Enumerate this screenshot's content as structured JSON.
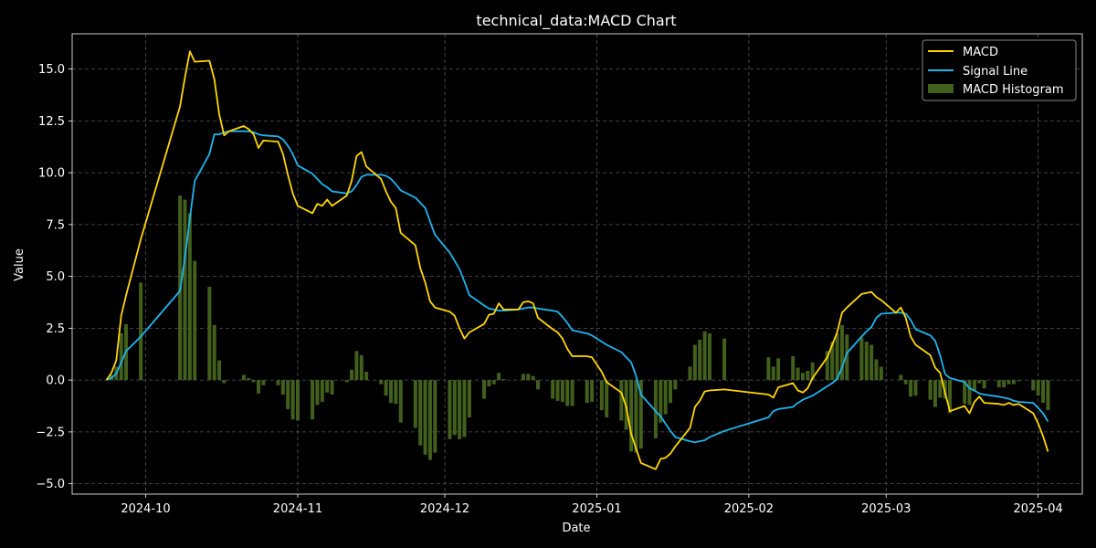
{
  "colors": {
    "background": "#000000",
    "axes": "#ffffff",
    "grid": "#555555",
    "macd": "#ffd700",
    "signal": "#1fb5f0",
    "histogram": "#425f1c"
  },
  "chart_data": {
    "type": "line",
    "title": "technical_data:MACD Chart",
    "xlabel": "Date",
    "ylabel": "Value",
    "xlim": [
      "2024-09-16",
      "2025-04-10"
    ],
    "ylim": [
      -5.5,
      16.7
    ],
    "grid": true,
    "legend_position": "top-right",
    "x_ticks": [
      "2024-10-01",
      "2024-11-01",
      "2024-12-01",
      "2025-01-01",
      "2025-02-01",
      "2025-03-01",
      "2025-04-01"
    ],
    "x_tick_labels": [
      "2024-10",
      "2024-11",
      "2024-12",
      "2025-01",
      "2025-02",
      "2025-03",
      "2025-04"
    ],
    "y_ticks": [
      -5.0,
      -2.5,
      0.0,
      2.5,
      5.0,
      7.5,
      10.0,
      12.5,
      15.0
    ],
    "y_tick_labels": [
      "−5.0",
      "−2.5",
      "0.0",
      "2.5",
      "5.0",
      "7.5",
      "10.0",
      "12.5",
      "15.0"
    ],
    "dates": [
      "2024-09-23",
      "2024-09-24",
      "2024-09-25",
      "2024-09-26",
      "2024-09-27",
      "2024-09-30",
      "2024-10-08",
      "2024-10-09",
      "2024-10-10",
      "2024-10-11",
      "2024-10-14",
      "2024-10-15",
      "2024-10-16",
      "2024-10-17",
      "2024-10-18",
      "2024-10-21",
      "2024-10-22",
      "2024-10-23",
      "2024-10-24",
      "2024-10-25",
      "2024-10-28",
      "2024-10-29",
      "2024-10-30",
      "2024-10-31",
      "2024-11-01",
      "2024-11-04",
      "2024-11-05",
      "2024-11-06",
      "2024-11-07",
      "2024-11-08",
      "2024-11-11",
      "2024-11-12",
      "2024-11-13",
      "2024-11-14",
      "2024-11-15",
      "2024-11-18",
      "2024-11-19",
      "2024-11-20",
      "2024-11-21",
      "2024-11-22",
      "2024-11-25",
      "2024-11-26",
      "2024-11-27",
      "2024-11-28",
      "2024-11-29",
      "2024-12-02",
      "2024-12-03",
      "2024-12-04",
      "2024-12-05",
      "2024-12-06",
      "2024-12-09",
      "2024-12-10",
      "2024-12-11",
      "2024-12-12",
      "2024-12-13",
      "2024-12-16",
      "2024-12-17",
      "2024-12-18",
      "2024-12-19",
      "2024-12-20",
      "2024-12-23",
      "2024-12-24",
      "2024-12-25",
      "2024-12-26",
      "2024-12-27",
      "2024-12-30",
      "2024-12-31",
      "2025-01-02",
      "2025-01-03",
      "2025-01-06",
      "2025-01-07",
      "2025-01-08",
      "2025-01-09",
      "2025-01-10",
      "2025-01-13",
      "2025-01-14",
      "2025-01-15",
      "2025-01-16",
      "2025-01-17",
      "2025-01-20",
      "2025-01-21",
      "2025-01-22",
      "2025-01-23",
      "2025-01-24",
      "2025-01-27",
      "2025-02-05",
      "2025-02-06",
      "2025-02-07",
      "2025-02-10",
      "2025-02-11",
      "2025-02-12",
      "2025-02-13",
      "2025-02-14",
      "2025-02-17",
      "2025-02-18",
      "2025-02-19",
      "2025-02-20",
      "2025-02-21",
      "2025-02-24",
      "2025-02-25",
      "2025-02-26",
      "2025-02-27",
      "2025-02-28",
      "2025-03-03",
      "2025-03-04",
      "2025-03-05",
      "2025-03-06",
      "2025-03-07",
      "2025-03-10",
      "2025-03-11",
      "2025-03-12",
      "2025-03-13",
      "2025-03-14",
      "2025-03-17",
      "2025-03-18",
      "2025-03-19",
      "2025-03-20",
      "2025-03-21",
      "2025-03-24",
      "2025-03-25",
      "2025-03-26",
      "2025-03-27",
      "2025-03-28",
      "2025-03-31",
      "2025-04-01",
      "2025-04-02",
      "2025-04-03"
    ],
    "series": [
      {
        "name": "MACD",
        "color": "#ffd700",
        "values": [
          0.0,
          0.35,
          0.95,
          3.1,
          4.1,
          6.8,
          13.2,
          14.6,
          15.85,
          15.35,
          15.4,
          14.5,
          12.8,
          11.8,
          12.0,
          12.25,
          12.1,
          11.85,
          11.2,
          11.55,
          11.5,
          10.9,
          9.9,
          9.0,
          8.4,
          8.05,
          8.5,
          8.4,
          8.7,
          8.4,
          8.9,
          9.6,
          10.8,
          11.0,
          10.3,
          9.7,
          9.1,
          8.6,
          8.3,
          7.1,
          6.5,
          5.4,
          4.7,
          3.8,
          3.5,
          3.3,
          3.1,
          2.5,
          2.0,
          2.3,
          2.7,
          3.15,
          3.2,
          3.7,
          3.4,
          3.4,
          3.75,
          3.8,
          3.7,
          3.0,
          2.45,
          2.3,
          2.0,
          1.5,
          1.15,
          1.15,
          1.1,
          0.4,
          -0.1,
          -0.6,
          -1.3,
          -2.6,
          -3.3,
          -4.0,
          -4.3,
          -3.8,
          -3.75,
          -3.55,
          -3.2,
          -2.3,
          -1.3,
          -1.0,
          -0.55,
          -0.5,
          -0.45,
          -0.7,
          -0.85,
          -0.35,
          -0.15,
          -0.5,
          -0.6,
          -0.4,
          0.1,
          1.1,
          1.7,
          2.3,
          3.25,
          3.5,
          4.15,
          4.2,
          4.25,
          4.0,
          3.85,
          3.25,
          3.5,
          3.0,
          2.1,
          1.7,
          1.2,
          0.6,
          0.35,
          -0.6,
          -1.5,
          -1.25,
          -1.6,
          -1.05,
          -0.8,
          -1.1,
          -1.15,
          -1.2,
          -1.1,
          -1.2,
          -1.15,
          -1.6,
          -2.1,
          -2.7,
          -3.45
        ]
      },
      {
        "name": "Signal Line",
        "color": "#1fb5f0",
        "values": [
          0.0,
          0.1,
          0.3,
          0.85,
          1.4,
          2.1,
          4.3,
          5.9,
          7.8,
          9.6,
          10.9,
          11.85,
          11.85,
          11.95,
          12.0,
          12.0,
          12.0,
          11.95,
          11.85,
          11.8,
          11.75,
          11.6,
          11.3,
          10.9,
          10.35,
          9.95,
          9.7,
          9.45,
          9.3,
          9.1,
          9.0,
          9.1,
          9.4,
          9.8,
          9.9,
          9.9,
          9.85,
          9.7,
          9.45,
          9.15,
          8.8,
          8.55,
          8.3,
          7.65,
          7.0,
          6.15,
          5.75,
          5.35,
          4.75,
          4.1,
          3.6,
          3.45,
          3.4,
          3.35,
          3.35,
          3.4,
          3.45,
          3.5,
          3.5,
          3.45,
          3.35,
          3.3,
          3.05,
          2.75,
          2.4,
          2.25,
          2.15,
          1.85,
          1.7,
          1.35,
          1.1,
          0.85,
          0.2,
          -0.7,
          -1.5,
          -1.75,
          -2.1,
          -2.45,
          -2.75,
          -2.95,
          -3.0,
          -2.95,
          -2.9,
          -2.75,
          -2.45,
          -1.8,
          -1.5,
          -1.4,
          -1.3,
          -1.1,
          -0.95,
          -0.85,
          -0.75,
          -0.3,
          -0.15,
          0.05,
          0.6,
          1.3,
          2.1,
          2.35,
          2.55,
          3.0,
          3.2,
          3.25,
          3.25,
          3.2,
          2.9,
          2.45,
          2.15,
          1.9,
          1.2,
          0.3,
          0.1,
          -0.1,
          -0.4,
          -0.5,
          -0.65,
          -0.7,
          -0.8,
          -0.85,
          -0.9,
          -1.0,
          -1.05,
          -1.1,
          -1.35,
          -1.6,
          -2.0
        ]
      },
      {
        "name": "MACD Histogram",
        "color": "#425f1c",
        "type": "bar",
        "values": [
          0.0,
          0.25,
          0.65,
          2.25,
          2.7,
          4.7,
          8.9,
          8.7,
          8.05,
          5.75,
          4.5,
          2.65,
          0.95,
          -0.15,
          0.0,
          0.25,
          0.1,
          -0.1,
          -0.65,
          -0.25,
          -0.25,
          -0.7,
          -1.4,
          -1.9,
          -1.95,
          -1.9,
          -1.2,
          -1.05,
          -0.6,
          -0.7,
          -0.1,
          0.5,
          1.4,
          1.2,
          0.4,
          -0.2,
          -0.75,
          -1.1,
          -1.15,
          -2.05,
          -2.3,
          -3.15,
          -3.6,
          -3.85,
          -3.5,
          -2.85,
          -2.65,
          -2.85,
          -2.75,
          -1.8,
          -0.9,
          -0.3,
          -0.2,
          0.35,
          0.05,
          0.0,
          0.3,
          0.3,
          0.2,
          -0.45,
          -0.9,
          -1.0,
          -1.05,
          -1.25,
          -1.25,
          -1.1,
          -1.05,
          -1.45,
          -1.8,
          -1.95,
          -2.4,
          -3.45,
          -3.5,
          -3.3,
          -2.8,
          -2.05,
          -1.65,
          -1.1,
          -0.45,
          0.65,
          1.7,
          1.95,
          2.35,
          2.25,
          2.0,
          1.1,
          0.65,
          1.05,
          1.15,
          0.6,
          0.35,
          0.45,
          0.85,
          1.4,
          1.85,
          2.25,
          2.65,
          2.2,
          2.05,
          1.85,
          1.7,
          1.0,
          0.65,
          0.0,
          0.25,
          -0.2,
          -0.8,
          -0.75,
          -0.95,
          -1.3,
          -0.85,
          -0.9,
          -1.6,
          -1.15,
          -1.2,
          -0.55,
          -0.15,
          -0.4,
          -0.35,
          -0.35,
          -0.2,
          -0.2,
          -0.05,
          -0.5,
          -0.75,
          -1.1,
          -1.45
        ]
      }
    ]
  }
}
